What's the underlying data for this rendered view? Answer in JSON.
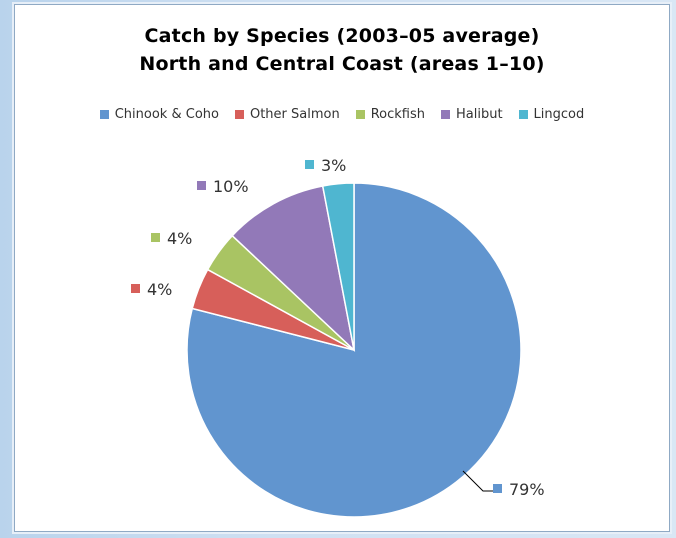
{
  "chart_data": {
    "type": "pie",
    "title": "Catch by Species (2003–05 average)",
    "subtitle": "North and Central Coast (areas 1–10)",
    "legend_position": "top",
    "slices": [
      {
        "name": "Chinook & Coho",
        "value": 79,
        "label": "79%",
        "color": "#6195cf"
      },
      {
        "name": "Other Salmon",
        "value": 4,
        "label": "4%",
        "color": "#d75f5a"
      },
      {
        "name": "Rockfish",
        "value": 4,
        "label": "4%",
        "color": "#a9c463"
      },
      {
        "name": "Halibut",
        "value": 10,
        "label": "10%",
        "color": "#9279b8"
      },
      {
        "name": "Lingcod",
        "value": 3,
        "label": "3%",
        "color": "#4fb6d0"
      }
    ]
  }
}
